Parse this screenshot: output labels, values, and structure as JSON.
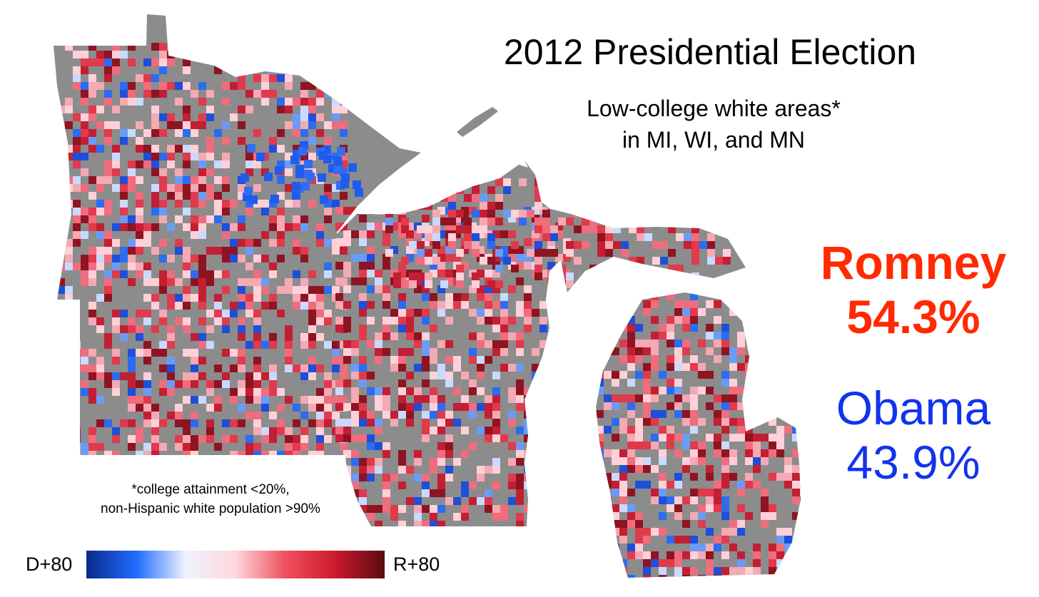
{
  "title": "2012 Presidential Election",
  "subtitle": {
    "line1": "Low-college white areas*",
    "line2": "in MI, WI, and MN"
  },
  "results": [
    {
      "candidate": "Romney",
      "share": "54.3%",
      "color": "#ff2a00"
    },
    {
      "candidate": "Obama",
      "share": "43.9%",
      "color": "#1133ee"
    }
  ],
  "footnote": {
    "line1": "*college attainment <20%,",
    "line2": "non-Hispanic white population >90%"
  },
  "legend": {
    "left_label": "D+80",
    "right_label": "R+80",
    "colors": [
      "#0a2a8a",
      "#1f6bff",
      "#eef3ff",
      "#ffd6dd",
      "#f0505f",
      "#cc1a2c",
      "#5a0b12"
    ]
  },
  "map": {
    "states": [
      "MN",
      "WI",
      "MI"
    ],
    "land_color": "#8c8c8c",
    "water_color": "#ffffff",
    "shading": "county subdivisions shaded by margin, D+80 to R+80"
  }
}
